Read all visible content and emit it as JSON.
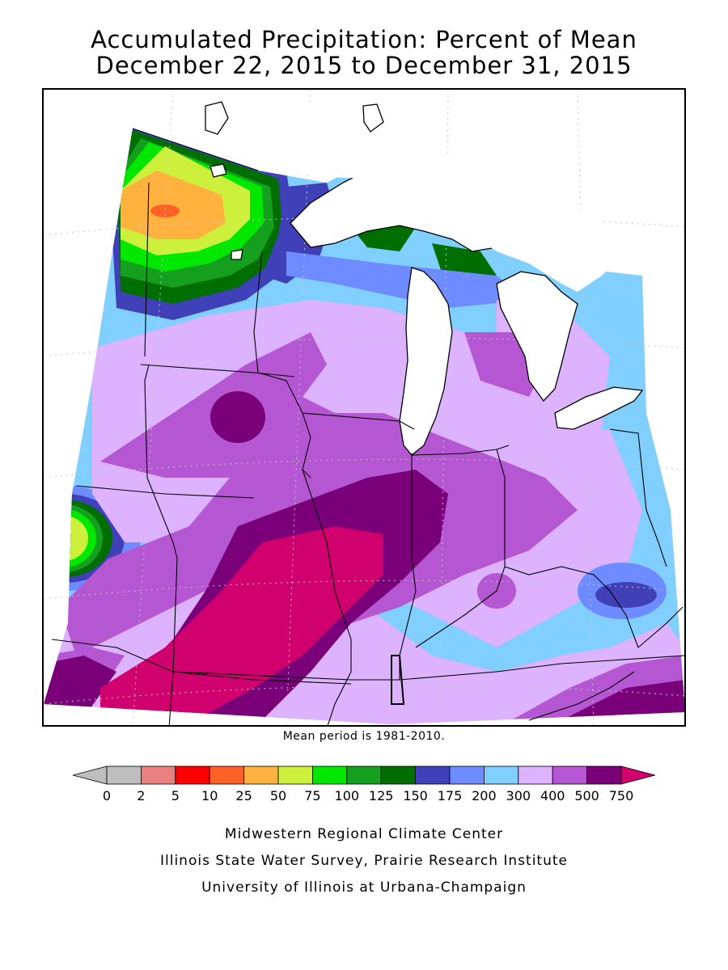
{
  "title": {
    "line1": "Accumulated Precipitation: Percent of Mean",
    "line2": "December 22, 2015 to December 31, 2015"
  },
  "map": {
    "region": "Midwest United States",
    "layers": [
      "state-borders",
      "great-lakes",
      "precipitation-contours",
      "graticule"
    ],
    "mean_note": "Mean period is 1981-2010."
  },
  "legend": {
    "units": "percent of mean",
    "bins": [
      {
        "label": "0",
        "color": "#bebebe"
      },
      {
        "label": "2",
        "color": "#e88080"
      },
      {
        "label": "5",
        "color": "#ff0000"
      },
      {
        "label": "10",
        "color": "#ff6226"
      },
      {
        "label": "25",
        "color": "#ffb23e"
      },
      {
        "label": "50",
        "color": "#cdf03c"
      },
      {
        "label": "75",
        "color": "#00e800"
      },
      {
        "label": "100",
        "color": "#14a01e"
      },
      {
        "label": "125",
        "color": "#006e00"
      },
      {
        "label": "150",
        "color": "#4040b8"
      },
      {
        "label": "175",
        "color": "#6e8cff"
      },
      {
        "label": "200",
        "color": "#80cfff"
      },
      {
        "label": "300",
        "color": "#ddb2ff"
      },
      {
        "label": "400",
        "color": "#b557d2"
      },
      {
        "label": "500",
        "color": "#7a007a"
      },
      {
        "label": "750",
        "color": "#d0006e"
      }
    ],
    "low_arrow_color": "#bebebe",
    "high_arrow_color": "#d0006e"
  },
  "credits": {
    "line1": "Midwestern Regional Climate Center",
    "line2": "Illinois State Water Survey, Prairie Research Institute",
    "line3": "University of Illinois at Urbana-Champaign"
  }
}
